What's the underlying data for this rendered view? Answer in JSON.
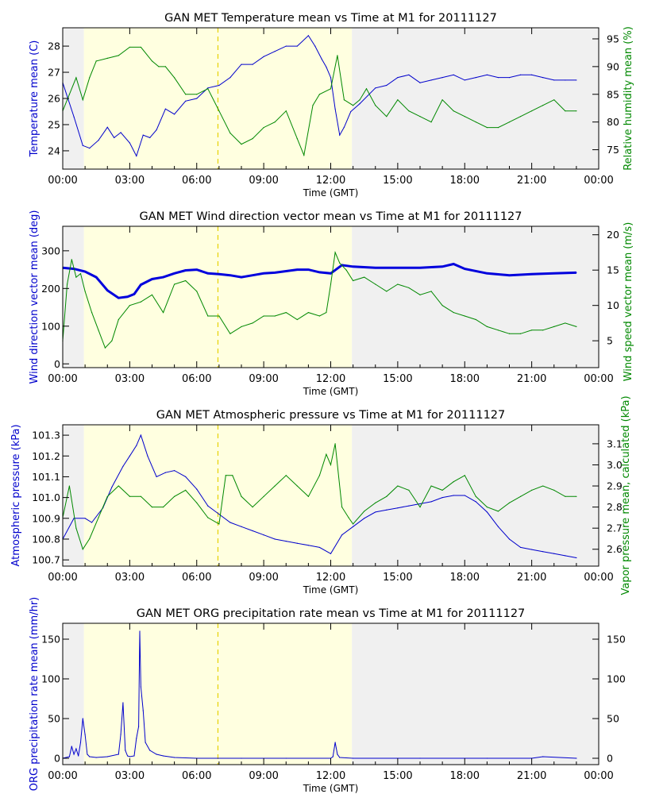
{
  "chart_data": [
    {
      "type": "line",
      "title": "GAN MET Temperature mean vs Time at M1 for 20111127",
      "xlabel": "Time (GMT)",
      "ylabel": "Temperature mean (C)",
      "y2label": "Relative humidity mean (%)",
      "x_ticks": [
        "00:00",
        "03:00",
        "06:00",
        "09:00",
        "12:00",
        "15:00",
        "18:00",
        "21:00",
        "00:00"
      ],
      "y_ticks": [
        "24",
        "25",
        "26",
        "27",
        "28"
      ],
      "y2_ticks": [
        "75",
        "80",
        "85",
        "90",
        "95"
      ],
      "ylim": [
        23.3,
        28.7
      ],
      "y2lim": [
        71.5,
        97
      ],
      "series": [
        {
          "name": "Temperature mean",
          "axis": "left",
          "color": "#0000cc",
          "x": [
            0,
            0.5,
            0.9,
            1.2,
            1.6,
            2.0,
            2.3,
            2.6,
            3.0,
            3.3,
            3.6,
            3.9,
            4.2,
            4.6,
            5.0,
            5.5,
            6.0,
            6.5,
            7.0,
            7.5,
            8.0,
            8.5,
            9.0,
            9.5,
            10.0,
            10.5,
            11.0,
            11.3,
            11.6,
            11.8,
            12.0,
            12.2,
            12.4,
            12.6,
            12.9,
            13.3,
            14.0,
            14.5,
            15.0,
            15.5,
            16.0,
            16.5,
            17.0,
            17.5,
            18.0,
            18.5,
            19.0,
            19.5,
            20.0,
            20.5,
            21.0,
            21.5,
            22.0,
            22.5,
            23.0
          ],
          "y": [
            26.6,
            25.3,
            24.2,
            24.1,
            24.4,
            24.9,
            24.5,
            24.7,
            24.3,
            23.8,
            24.6,
            24.5,
            24.8,
            25.6,
            25.4,
            25.9,
            26.0,
            26.4,
            26.5,
            26.8,
            27.3,
            27.3,
            27.6,
            27.8,
            28.0,
            28.0,
            28.4,
            28.0,
            27.5,
            27.2,
            26.8,
            25.6,
            24.6,
            24.9,
            25.5,
            25.8,
            26.4,
            26.5,
            26.8,
            26.9,
            26.6,
            26.7,
            26.8,
            26.9,
            26.7,
            26.8,
            26.9,
            26.8,
            26.8,
            26.9,
            26.9,
            26.8,
            26.7,
            26.7,
            26.7
          ]
        },
        {
          "name": "Relative humidity mean",
          "axis": "right",
          "color": "#008800",
          "x": [
            0,
            0.3,
            0.6,
            0.9,
            1.2,
            1.5,
            2.0,
            2.5,
            3.0,
            3.5,
            4.0,
            4.3,
            4.6,
            5.0,
            5.5,
            6.0,
            6.5,
            7.0,
            7.5,
            8.0,
            8.5,
            9.0,
            9.5,
            10.0,
            10.5,
            10.8,
            11.2,
            11.5,
            12.0,
            12.3,
            12.6,
            13.0,
            13.3,
            13.6,
            14.0,
            14.5,
            15.0,
            15.5,
            16.0,
            16.5,
            17.0,
            17.5,
            18.0,
            18.5,
            19.0,
            19.5,
            20.0,
            20.5,
            21.0,
            21.5,
            22.0,
            22.5,
            23.0
          ],
          "y": [
            82.0,
            85.0,
            88.0,
            84.0,
            88.0,
            91.0,
            91.5,
            92.0,
            93.5,
            93.5,
            91.0,
            90.0,
            90.0,
            88.0,
            85.0,
            85.0,
            86.0,
            82.0,
            78.0,
            76.0,
            77.0,
            79.0,
            80.0,
            82.0,
            77.0,
            74.0,
            83.0,
            85.0,
            86.0,
            92.0,
            84.0,
            83.0,
            84.0,
            86.0,
            83.0,
            81.0,
            84.0,
            82.0,
            81.0,
            80.0,
            84.0,
            82.0,
            81.0,
            80.0,
            79.0,
            79.0,
            80.0,
            81.0,
            82.0,
            83.0,
            84.0,
            82.0,
            82.0
          ]
        }
      ]
    },
    {
      "type": "line",
      "title": "GAN MET Wind direction vector mean vs Time at M1 for 20111127",
      "xlabel": "Time (GMT)",
      "ylabel": "Wind direction vector mean (deg)",
      "y2label": "Wind speed vector mean (m/s)",
      "x_ticks": [
        "00:00",
        "03:00",
        "06:00",
        "09:00",
        "12:00",
        "15:00",
        "18:00",
        "21:00",
        "00:00"
      ],
      "y_ticks": [
        "0",
        "100",
        "200",
        "300"
      ],
      "y2_ticks": [
        "5",
        "10",
        "15",
        "20"
      ],
      "ylim": [
        -10,
        365
      ],
      "y2lim": [
        1.2,
        21.2
      ],
      "series": [
        {
          "name": "Wind direction vector mean",
          "axis": "left",
          "color": "#0000dd",
          "x": [
            0,
            0.5,
            1.0,
            1.5,
            2.0,
            2.5,
            2.9,
            3.2,
            3.5,
            4.0,
            4.5,
            5.0,
            5.5,
            6.0,
            6.5,
            7.0,
            7.5,
            8.0,
            8.5,
            9.0,
            9.5,
            10.0,
            10.5,
            11.0,
            11.5,
            12.0,
            12.5,
            13.0,
            14.0,
            15.0,
            16.0,
            17.0,
            17.5,
            18.0,
            19.0,
            20.0,
            21.0,
            22.0,
            23.0
          ],
          "y": [
            255,
            252,
            245,
            230,
            195,
            175,
            178,
            185,
            210,
            225,
            230,
            240,
            248,
            250,
            240,
            238,
            235,
            230,
            235,
            240,
            242,
            246,
            250,
            250,
            243,
            240,
            262,
            258,
            255,
            255,
            255,
            258,
            265,
            252,
            240,
            235,
            238,
            240,
            242
          ]
        },
        {
          "name": "Wind speed vector mean",
          "axis": "right",
          "color": "#008800",
          "x": [
            0,
            0.2,
            0.4,
            0.6,
            0.8,
            1.0,
            1.3,
            1.6,
            1.9,
            2.2,
            2.5,
            3.0,
            3.5,
            4.0,
            4.5,
            5.0,
            5.5,
            6.0,
            6.5,
            7.0,
            7.5,
            8.0,
            8.5,
            9.0,
            9.5,
            10.0,
            10.5,
            11.0,
            11.5,
            11.8,
            12.0,
            12.2,
            12.4,
            12.7,
            13.0,
            13.5,
            14.0,
            14.5,
            15.0,
            15.5,
            16.0,
            16.5,
            17.0,
            17.5,
            18.0,
            18.5,
            19.0,
            19.5,
            20.0,
            20.5,
            21.0,
            21.5,
            22.0,
            22.5,
            23.0
          ],
          "y": [
            5.0,
            13.0,
            16.5,
            14.0,
            14.5,
            12.0,
            9.0,
            6.5,
            4.0,
            5.0,
            8.0,
            10.0,
            10.5,
            11.5,
            9.0,
            13.0,
            13.5,
            12.0,
            8.5,
            8.5,
            6.0,
            7.0,
            7.5,
            8.5,
            8.5,
            9.0,
            8.0,
            9.0,
            8.5,
            9.0,
            13.0,
            17.5,
            16.0,
            15.0,
            13.5,
            14.0,
            13.0,
            12.0,
            13.0,
            12.5,
            11.5,
            12.0,
            10.0,
            9.0,
            8.5,
            8.0,
            7.0,
            6.5,
            6.0,
            6.0,
            6.5,
            6.5,
            7.0,
            7.5,
            7.0
          ]
        }
      ]
    },
    {
      "type": "line",
      "title": "GAN MET Atmospheric pressure vs Time at M1 for 20111127",
      "xlabel": "Time (GMT)",
      "ylabel": "Atmospheric pressure (kPa)",
      "y2label": "Vapor pressure mean, calculated (kPa)",
      "x_ticks": [
        "00:00",
        "03:00",
        "06:00",
        "09:00",
        "12:00",
        "15:00",
        "18:00",
        "21:00",
        "00:00"
      ],
      "y_ticks": [
        "100.7",
        "100.8",
        "100.9",
        "101.0",
        "101.1",
        "101.2",
        "101.3"
      ],
      "y2_ticks": [
        "2.6",
        "2.7",
        "2.8",
        "2.9",
        "3.0",
        "3.1"
      ],
      "ylim": [
        100.67,
        101.35
      ],
      "y2lim": [
        2.52,
        3.19
      ],
      "series": [
        {
          "name": "Atmospheric pressure",
          "axis": "left",
          "color": "#0000cc",
          "x": [
            0,
            0.5,
            1.0,
            1.3,
            1.8,
            2.2,
            2.7,
            3.0,
            3.3,
            3.5,
            3.8,
            4.2,
            4.6,
            5.0,
            5.5,
            6.0,
            6.5,
            7.0,
            7.5,
            8.0,
            8.5,
            9.0,
            9.5,
            10.0,
            10.5,
            11.0,
            11.5,
            12.0,
            12.5,
            13.0,
            13.5,
            14.0,
            14.5,
            15.0,
            15.5,
            16.0,
            16.5,
            17.0,
            17.5,
            18.0,
            18.5,
            19.0,
            19.5,
            20.0,
            20.5,
            21.0,
            21.5,
            22.0,
            22.5,
            23.0
          ],
          "y": [
            100.8,
            100.9,
            100.9,
            100.88,
            100.95,
            101.05,
            101.15,
            101.2,
            101.25,
            101.3,
            101.2,
            101.1,
            101.12,
            101.13,
            101.1,
            101.04,
            100.96,
            100.92,
            100.88,
            100.86,
            100.84,
            100.82,
            100.8,
            100.79,
            100.78,
            100.77,
            100.76,
            100.73,
            100.82,
            100.86,
            100.9,
            100.93,
            100.94,
            100.95,
            100.96,
            100.97,
            100.98,
            101.0,
            101.01,
            101.01,
            100.98,
            100.93,
            100.86,
            100.8,
            100.76,
            100.75,
            100.74,
            100.73,
            100.72,
            100.71
          ]
        },
        {
          "name": "Vapor pressure mean, calculated",
          "axis": "right",
          "color": "#008800",
          "x": [
            0,
            0.3,
            0.6,
            0.9,
            1.2,
            1.6,
            2.0,
            2.5,
            3.0,
            3.5,
            4.0,
            4.5,
            5.0,
            5.5,
            6.0,
            6.5,
            7.0,
            7.3,
            7.6,
            8.0,
            8.5,
            9.0,
            9.5,
            10.0,
            10.5,
            11.0,
            11.5,
            11.8,
            12.0,
            12.2,
            12.5,
            12.8,
            13.0,
            13.5,
            14.0,
            14.5,
            15.0,
            15.5,
            16.0,
            16.5,
            17.0,
            17.5,
            18.0,
            18.5,
            19.0,
            19.5,
            20.0,
            20.5,
            21.0,
            21.5,
            22.0,
            22.5,
            23.0
          ],
          "y": [
            2.75,
            2.9,
            2.7,
            2.6,
            2.65,
            2.75,
            2.85,
            2.9,
            2.85,
            2.85,
            2.8,
            2.8,
            2.85,
            2.88,
            2.82,
            2.75,
            2.72,
            2.95,
            2.95,
            2.85,
            2.8,
            2.85,
            2.9,
            2.95,
            2.9,
            2.85,
            2.95,
            3.05,
            3.0,
            3.1,
            2.8,
            2.75,
            2.72,
            2.78,
            2.82,
            2.85,
            2.9,
            2.88,
            2.8,
            2.9,
            2.88,
            2.92,
            2.95,
            2.85,
            2.8,
            2.78,
            2.82,
            2.85,
            2.88,
            2.9,
            2.88,
            2.85,
            2.85
          ]
        }
      ]
    },
    {
      "type": "line",
      "title": "GAN MET ORG precipitation rate mean vs Time at M1 for 20111127",
      "xlabel": "Time (GMT)",
      "ylabel": "ORG precipitation rate mean (mm/hr)",
      "x_ticks": [
        "00:00",
        "03:00",
        "06:00",
        "09:00",
        "12:00",
        "15:00",
        "18:00",
        "21:00",
        "00:00"
      ],
      "y_ticks": [
        "0",
        "50",
        "100",
        "150"
      ],
      "y2_ticks": [
        "0",
        "50",
        "100",
        "150"
      ],
      "ylim": [
        -8,
        170
      ],
      "series": [
        {
          "name": "ORG precipitation rate mean",
          "axis": "left",
          "color": "#0000cc",
          "x": [
            0,
            0.3,
            0.4,
            0.5,
            0.6,
            0.7,
            0.8,
            0.9,
            1.0,
            1.1,
            1.2,
            1.5,
            2.0,
            2.5,
            2.6,
            2.7,
            2.8,
            2.9,
            3.0,
            3.2,
            3.3,
            3.4,
            3.45,
            3.5,
            3.6,
            3.7,
            3.9,
            4.2,
            4.5,
            5.0,
            6.0,
            8.0,
            10.0,
            12.0,
            12.1,
            12.2,
            12.3,
            12.4,
            13.0,
            16.0,
            19.0,
            21.0,
            21.5,
            23.0
          ],
          "y": [
            0,
            2,
            15,
            5,
            12,
            3,
            20,
            50,
            30,
            5,
            2,
            1,
            2,
            5,
            30,
            70,
            10,
            3,
            2,
            3,
            25,
            40,
            160,
            90,
            60,
            20,
            10,
            5,
            3,
            1,
            0,
            0,
            0,
            0,
            2,
            20,
            5,
            1,
            0,
            0,
            0,
            0,
            2,
            0
          ]
        }
      ]
    }
  ],
  "colors": {
    "left_axis": "#0000cc",
    "right_axis": "#008800",
    "night_shade": "#f0f0f0",
    "day_shade": "#ffffe0",
    "noon_line": "#e6d200"
  }
}
